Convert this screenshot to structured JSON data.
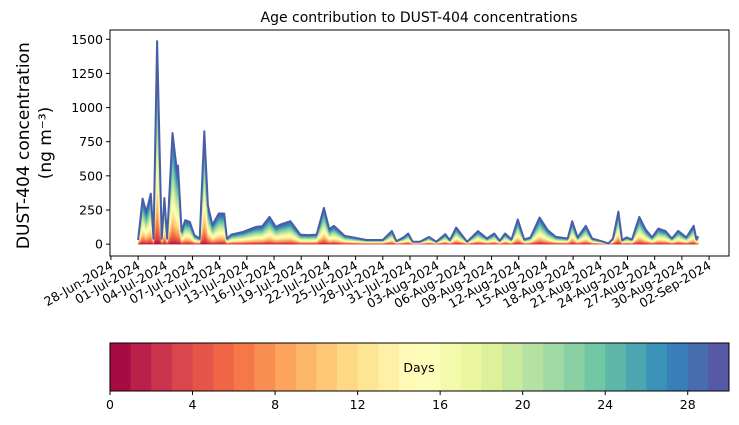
{
  "chart_data": {
    "type": "area",
    "subtype": "stacked",
    "title": "Age contribution to DUST-404 concentrations",
    "ylabel_line1": "DUST-404 concentration",
    "ylabel_line2": "(ng m⁻³)",
    "xlabel": "",
    "x_units": "days since 01-Jul-2024",
    "xlim": [
      -3.1,
      65.2
    ],
    "ylim": [
      -87,
      1568
    ],
    "yticks": [
      0,
      250,
      500,
      750,
      1000,
      1250,
      1500
    ],
    "xtick_origin_offset": -3,
    "xtick_step_days": 3,
    "xtick_labels": [
      "28-Jun-2024",
      "01-Jul-2024",
      "04-Jul-2024",
      "07-Jul-2024",
      "10-Jul-2024",
      "13-Jul-2024",
      "16-Jul-2024",
      "19-Jul-2024",
      "22-Jul-2024",
      "25-Jul-2024",
      "28-Jul-2024",
      "31-Jul-2024",
      "03-Aug-2024",
      "06-Aug-2024",
      "09-Aug-2024",
      "12-Aug-2024",
      "15-Aug-2024",
      "18-Aug-2024",
      "21-Aug-2024",
      "24-Aug-2024",
      "27-Aug-2024",
      "30-Aug-2024",
      "02-Sep-2024"
    ],
    "total_series": {
      "x": [
        0,
        0.5,
        0.9,
        1.4,
        1.7,
        2.1,
        2.6,
        2.9,
        3.2,
        3.8,
        4.3,
        4.4,
        4.8,
        5.2,
        5.7,
        6.2,
        6.8,
        7.3,
        7.7,
        8.2,
        8.9,
        9.5,
        9.8,
        10.3,
        11.6,
        13,
        13.7,
        14.5,
        15.2,
        15.8,
        16.8,
        17.9,
        18.8,
        19.7,
        20.5,
        21.1,
        21.6,
        22.8,
        23.4,
        25.2,
        27,
        28,
        28.5,
        29.3,
        29.8,
        30.3,
        31.1,
        32.1,
        32.9,
        33.9,
        34.4,
        35.1,
        36.3,
        37.5,
        38.5,
        39.3,
        39.9,
        40.5,
        41.2,
        41.9,
        42.6,
        43.3,
        44.3,
        45.2,
        46.1,
        47.4,
        47.9,
        48.5,
        49.4,
        50.1,
        51,
        51.9,
        52.4,
        53,
        53.4,
        53.9,
        54.5,
        55.3,
        56,
        56.7,
        57.4,
        58.2,
        58.9,
        59.6,
        60.5,
        61.3,
        61.6,
        61.8
      ],
      "y": [
        30,
        333,
        235,
        370,
        40,
        1487,
        40,
        338,
        40,
        814,
        527,
        575,
        90,
        175,
        163,
        66,
        40,
        826,
        284,
        140,
        224,
        224,
        40,
        70,
        90,
        126,
        131,
        199,
        126,
        146,
        168,
        70,
        66,
        70,
        265,
        109,
        134,
        61,
        53,
        30,
        30,
        97,
        22,
        49,
        78,
        17,
        17,
        53,
        17,
        73,
        29,
        122,
        17,
        95,
        41,
        78,
        24,
        78,
        34,
        180,
        34,
        49,
        194,
        102,
        53,
        41,
        168,
        49,
        134,
        41,
        24,
        5,
        41,
        238,
        29,
        49,
        34,
        199,
        107,
        49,
        114,
        95,
        41,
        97,
        49,
        134,
        34,
        58
      ]
    },
    "colorbar": {
      "label": "Days",
      "range": [
        0,
        30
      ],
      "n_levels": 30,
      "ticks": [
        0,
        4,
        8,
        12,
        16,
        20,
        24,
        28
      ],
      "colormap_anchors": [
        "#9e0142",
        "#d53e4f",
        "#f46d43",
        "#fdae61",
        "#fee08b",
        "#ffffbf",
        "#e6f598",
        "#abdda4",
        "#66c2a5",
        "#3288bd",
        "#5e4fa2"
      ]
    },
    "top_line_color": "#4a5da8"
  }
}
